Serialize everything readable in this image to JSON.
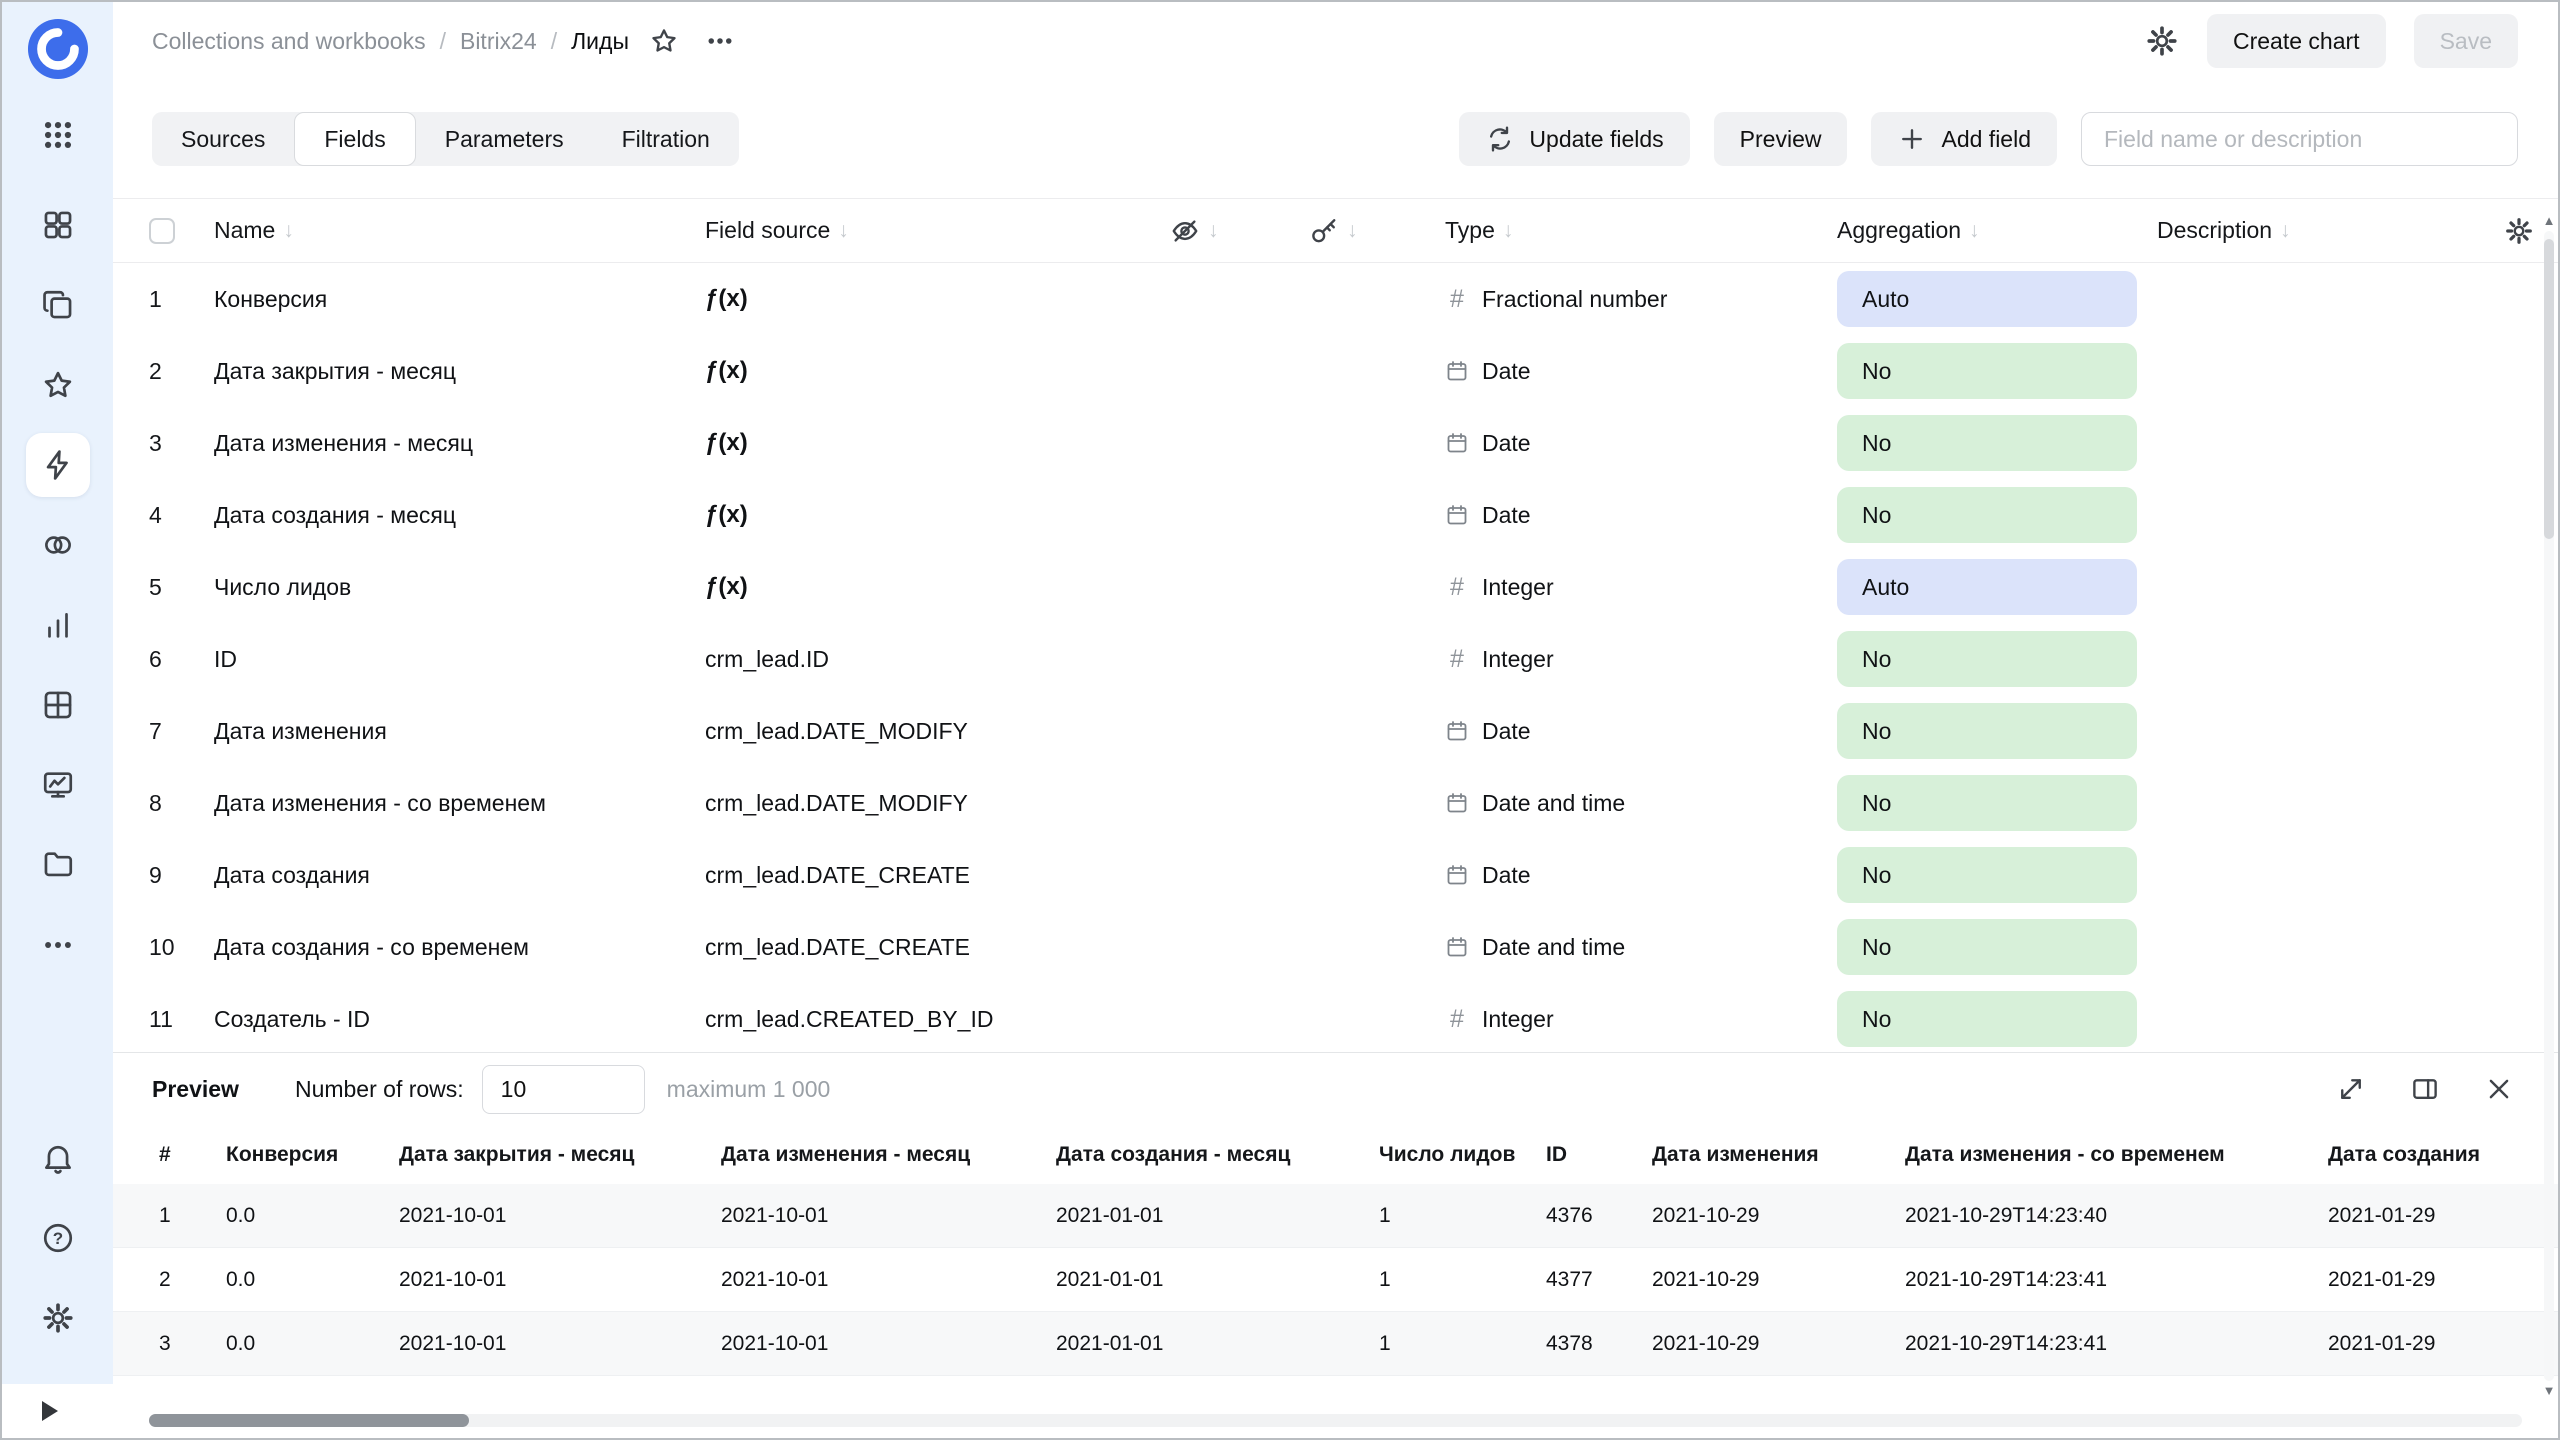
{
  "header": {
    "breadcrumb": [
      "Collections and workbooks",
      "Bitrix24",
      "Лиды"
    ],
    "create_chart_label": "Create chart",
    "save_label": "Save"
  },
  "tabs": [
    {
      "label": "Sources",
      "active": false
    },
    {
      "label": "Fields",
      "active": true
    },
    {
      "label": "Parameters",
      "active": false
    },
    {
      "label": "Filtration",
      "active": false
    }
  ],
  "toolbar": {
    "update_fields_label": "Update fields",
    "preview_label": "Preview",
    "add_field_label": "Add field",
    "search_placeholder": "Field name or description"
  },
  "fields_table": {
    "columns": {
      "name": "Name",
      "field_source": "Field source",
      "type": "Type",
      "aggregation": "Aggregation",
      "description": "Description"
    },
    "rows": [
      {
        "index": 1,
        "name": "Конверсия",
        "source": "ƒ(x)",
        "formula": true,
        "type": "Fractional number",
        "type_icon": "hash",
        "aggregation": "Auto",
        "agg_color": "blue"
      },
      {
        "index": 2,
        "name": "Дата закрытия - месяц",
        "source": "ƒ(x)",
        "formula": true,
        "type": "Date",
        "type_icon": "calendar",
        "aggregation": "No",
        "agg_color": "green"
      },
      {
        "index": 3,
        "name": "Дата изменения - месяц",
        "source": "ƒ(x)",
        "formula": true,
        "type": "Date",
        "type_icon": "calendar",
        "aggregation": "No",
        "agg_color": "green"
      },
      {
        "index": 4,
        "name": "Дата создания - месяц",
        "source": "ƒ(x)",
        "formula": true,
        "type": "Date",
        "type_icon": "calendar",
        "aggregation": "No",
        "agg_color": "green"
      },
      {
        "index": 5,
        "name": "Число лидов",
        "source": "ƒ(x)",
        "formula": true,
        "type": "Integer",
        "type_icon": "hash",
        "aggregation": "Auto",
        "agg_color": "blue"
      },
      {
        "index": 6,
        "name": "ID",
        "source": "crm_lead.ID",
        "formula": false,
        "type": "Integer",
        "type_icon": "hash",
        "aggregation": "No",
        "agg_color": "green"
      },
      {
        "index": 7,
        "name": "Дата изменения",
        "source": "crm_lead.DATE_MODIFY",
        "formula": false,
        "type": "Date",
        "type_icon": "calendar",
        "aggregation": "No",
        "agg_color": "green"
      },
      {
        "index": 8,
        "name": "Дата изменения - со временем",
        "source": "crm_lead.DATE_MODIFY",
        "formula": false,
        "type": "Date and time",
        "type_icon": "calendar",
        "aggregation": "No",
        "agg_color": "green"
      },
      {
        "index": 9,
        "name": "Дата создания",
        "source": "crm_lead.DATE_CREATE",
        "formula": false,
        "type": "Date",
        "type_icon": "calendar",
        "aggregation": "No",
        "agg_color": "green"
      },
      {
        "index": 10,
        "name": "Дата создания - со временем",
        "source": "crm_lead.DATE_CREATE",
        "formula": false,
        "type": "Date and time",
        "type_icon": "calendar",
        "aggregation": "No",
        "agg_color": "green"
      },
      {
        "index": 11,
        "name": "Создатель - ID",
        "source": "crm_lead.CREATED_BY_ID",
        "formula": false,
        "type": "Integer",
        "type_icon": "hash",
        "aggregation": "No",
        "agg_color": "green"
      }
    ]
  },
  "preview": {
    "title": "Preview",
    "rows_label": "Number of rows:",
    "rows_value": "10",
    "max_label": "maximum 1 000",
    "columns": [
      "#",
      "Конверсия",
      "Дата закрытия - месяц",
      "Дата изменения - месяц",
      "Дата создания - месяц",
      "Число лидов",
      "ID",
      "Дата изменения",
      "Дата изменения - со временем",
      "Дата создания"
    ],
    "rows": [
      [
        "1",
        "0.0",
        "2021-10-01",
        "2021-10-01",
        "2021-01-01",
        "1",
        "4376",
        "2021-10-29",
        "2021-10-29T14:23:40",
        "2021-01-29"
      ],
      [
        "2",
        "0.0",
        "2021-10-01",
        "2021-10-01",
        "2021-01-01",
        "1",
        "4377",
        "2021-10-29",
        "2021-10-29T14:23:41",
        "2021-01-29"
      ],
      [
        "3",
        "0.0",
        "2021-10-01",
        "2021-10-01",
        "2021-01-01",
        "1",
        "4378",
        "2021-10-29",
        "2021-10-29T14:23:41",
        "2021-01-29"
      ]
    ]
  },
  "colors": {
    "aggregation_auto_bg": "#dbe3fa",
    "aggregation_no_bg": "#d7f0d9",
    "sidebar_bg": "#e9f2fd",
    "logo_blue": "#3d6deb"
  }
}
